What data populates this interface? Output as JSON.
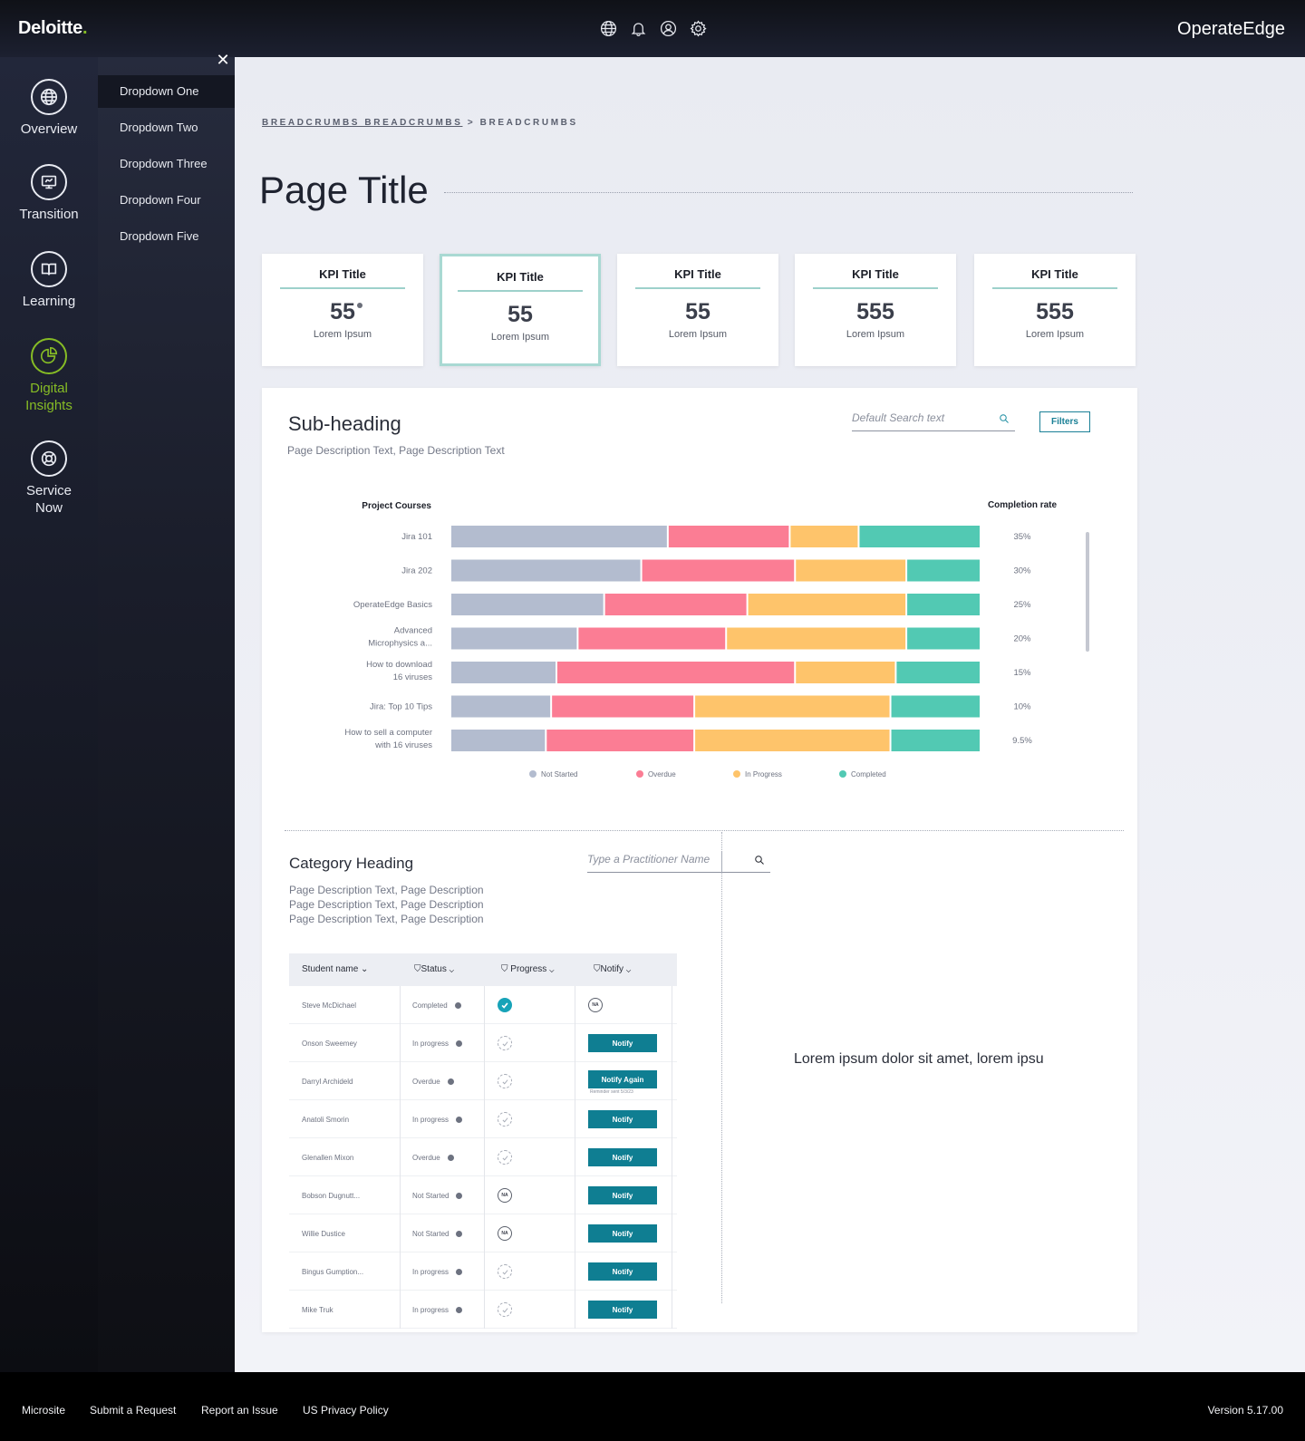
{
  "header": {
    "brand": "Deloitte",
    "brand_dot": ".",
    "app_name": "OperateEdge"
  },
  "icons": {
    "globe": "globe-icon",
    "bell": "bell-icon",
    "user": "user-icon",
    "settings": "gear-icon"
  },
  "rail": {
    "items": [
      {
        "label": "Overview",
        "icon": "globe-icon"
      },
      {
        "label": "Transition",
        "icon": "monitor-icon"
      },
      {
        "label": "Learning",
        "icon": "book-icon"
      },
      {
        "label": "Digital Insights",
        "icon": "pie-chart-icon"
      },
      {
        "label": "Service Now",
        "icon": "lifebuoy-icon"
      }
    ]
  },
  "dropdown": {
    "close": "✕",
    "items": [
      "Dropdown One",
      "Dropdown Two",
      "Dropdown Three",
      "Dropdown Four",
      "Dropdown Five"
    ]
  },
  "breadcrumbs": {
    "link": "BREADCRUMBS BREADCRUMBS",
    "sep": " > ",
    "current": "BREADCRUMBS"
  },
  "page_title": "Page Title",
  "kpis": [
    {
      "title": "KPI Title",
      "value": "55",
      "label": "Lorem Ipsum"
    },
    {
      "title": "KPI Title",
      "value": "55",
      "label": "Lorem Ipsum"
    },
    {
      "title": "KPI Title",
      "value": "55",
      "label": "Lorem Ipsum"
    },
    {
      "title": "KPI Title",
      "value": "555",
      "label": "Lorem Ipsum"
    },
    {
      "title": "KPI Title",
      "value": "555",
      "label": "Lorem Ipsum"
    }
  ],
  "section": {
    "subheading": "Sub-heading",
    "description": "Page Description Text, Page Description Text",
    "search_placeholder": "Default Search text",
    "filters_label": "Filters"
  },
  "chart_data": {
    "type": "bar",
    "orientation": "horizontal-stacked",
    "left_header": "Project Courses",
    "right_header": "Completion rate",
    "categories": [
      [
        "Jira 101"
      ],
      [
        "Jira 202"
      ],
      [
        "OperateEdge Basics"
      ],
      [
        "Advanced",
        "Microphysics a..."
      ],
      [
        "How to download",
        "16 viruses"
      ],
      [
        "Jira: Top 10 Tips"
      ],
      [
        "How to sell a computer",
        "with 16 viruses"
      ]
    ],
    "completion_rates": [
      "35%",
      "30%",
      "25%",
      "20%",
      "15%",
      "10%",
      "9.5%"
    ],
    "series": [
      {
        "name": "Not Started",
        "color": "#b3bccf",
        "values": [
          41,
          36,
          29,
          24,
          20,
          19,
          18
        ]
      },
      {
        "name": "Overdue",
        "color": "#fb7d94",
        "values": [
          23,
          29,
          27,
          28,
          45,
          27,
          28
        ]
      },
      {
        "name": "In Progress",
        "color": "#fec46b",
        "values": [
          13,
          21,
          30,
          34,
          19,
          37,
          37
        ]
      },
      {
        "name": "Completed",
        "color": "#52c9b3",
        "values": [
          23,
          14,
          14,
          14,
          16,
          17,
          17
        ]
      }
    ],
    "xlim": [
      0,
      100
    ]
  },
  "category": {
    "heading": "Category Heading",
    "desc_lines": [
      "Page Description Text, Page Description",
      "Page Description Text, Page Description",
      "Page Description Text, Page Description"
    ],
    "search_placeholder": "Type a Practitioner Name"
  },
  "table": {
    "headers": {
      "name": "Student name",
      "status": "Status",
      "progress": "Progress",
      "notify": "Notify"
    },
    "rows": [
      {
        "name": "Steve McDichael",
        "status": "Completed",
        "progress": "done",
        "notify": "NA"
      },
      {
        "name": "Onson Sweemey",
        "status": "In progress",
        "progress": "pending",
        "notify": "Notify"
      },
      {
        "name": "Darryl Archideld",
        "status": "Overdue",
        "progress": "pending",
        "notify": "Notify Again",
        "reminder": "Reminder sent 5/3/23"
      },
      {
        "name": "Anatoli Smorin",
        "status": "In progress",
        "progress": "pending",
        "notify": "Notify"
      },
      {
        "name": "Glenallen Mixon",
        "status": "Overdue",
        "progress": "pending",
        "notify": "Notify"
      },
      {
        "name": "Bobson Dugnutt...",
        "status": "Not Started",
        "progress": "NA",
        "notify": "Notify"
      },
      {
        "name": "Willie Dustice",
        "status": "Not Started",
        "progress": "NA",
        "notify": "Notify"
      },
      {
        "name": "Bingus Gumption...",
        "status": "In progress",
        "progress": "pending",
        "notify": "Notify"
      },
      {
        "name": "Mike Truk",
        "status": "In progress",
        "progress": "pending",
        "notify": "Notify"
      }
    ]
  },
  "side_text": "Lorem ipsum dolor sit amet, lorem ipsu",
  "footer": {
    "links": [
      "Microsite",
      "Submit a Request",
      "Report an Issue",
      "US Privacy Policy"
    ],
    "version": "Version 5.17.00"
  }
}
